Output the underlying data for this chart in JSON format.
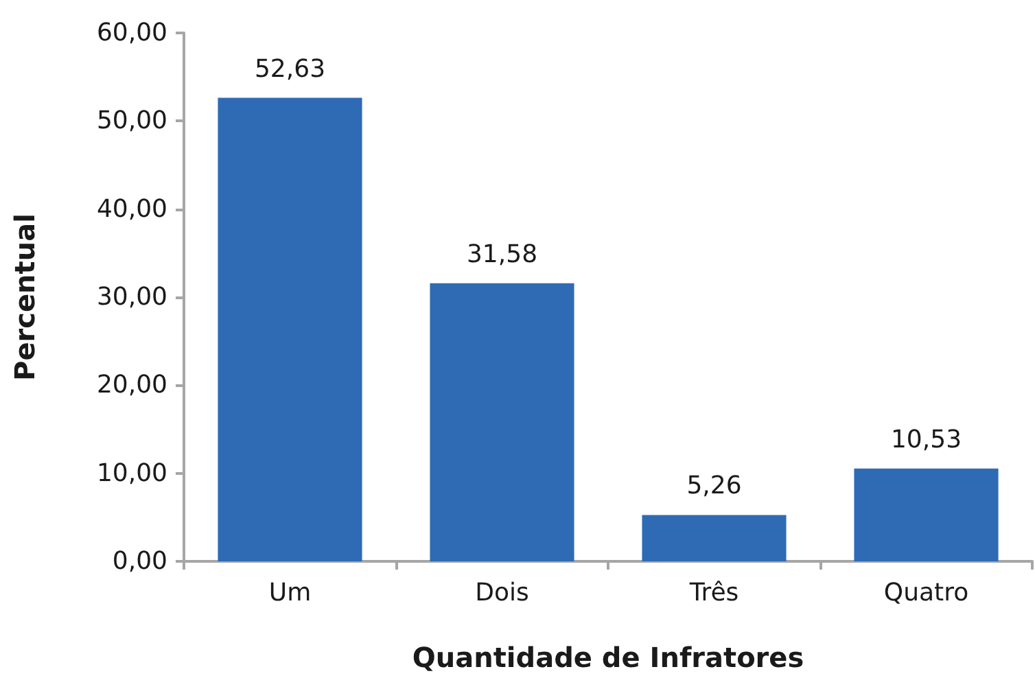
{
  "chart_data": {
    "type": "bar",
    "xlabel": "Quantidade de Infratores",
    "ylabel": "Percentual",
    "categories": [
      "Um",
      "Dois",
      "Três",
      "Quatro"
    ],
    "values": [
      52.63,
      31.58,
      5.26,
      10.53
    ],
    "color": "#2e6bb4",
    "value_labels": [
      "52,63",
      "31,58",
      "5,26",
      "10,53"
    ],
    "ylim": [
      0,
      60
    ],
    "yticks": [
      {
        "value": 0,
        "label": "0,00"
      },
      {
        "value": 10,
        "label": "10,00"
      },
      {
        "value": 20,
        "label": "20,00"
      },
      {
        "value": 30,
        "label": "30,00"
      },
      {
        "value": 40,
        "label": "40,00"
      },
      {
        "value": 50,
        "label": "50,00"
      },
      {
        "value": 60,
        "label": "60,00"
      }
    ]
  }
}
